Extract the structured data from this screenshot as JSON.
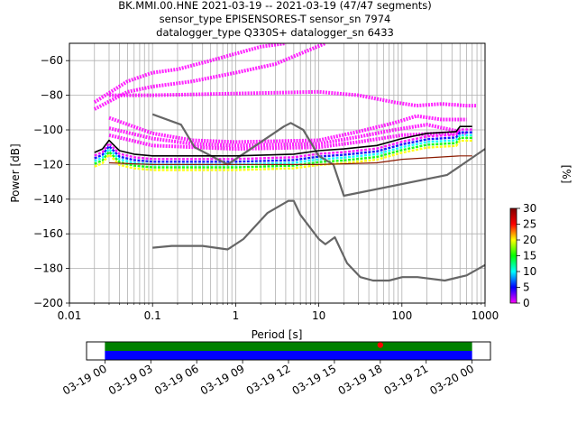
{
  "chart_data": {
    "type": "heatmap",
    "title_lines": [
      "BK.MMI.00.HNE   2021-03-19 -- 2021-03-19  (47/47 segments)",
      "sensor_type EPISENSORES-T sensor_sn 7974",
      "datalogger_type Q330S+ datalogger_sn 6433"
    ],
    "xlabel": "Period [s]",
    "ylabel": "Power [dB]",
    "x_scale": "log",
    "xlim": [
      0.01,
      1000
    ],
    "ylim": [
      -200,
      -50
    ],
    "x_ticks": [
      {
        "value": 0.01,
        "label": "0.01"
      },
      {
        "value": 0.1,
        "label": "0.1"
      },
      {
        "value": 1,
        "label": "1"
      },
      {
        "value": 10,
        "label": "10"
      },
      {
        "value": 100,
        "label": "100"
      },
      {
        "value": 1000,
        "label": "1000"
      }
    ],
    "y_ticks": [
      {
        "value": -60,
        "label": "−60"
      },
      {
        "value": -80,
        "label": "−80"
      },
      {
        "value": -100,
        "label": "−100"
      },
      {
        "value": -120,
        "label": "−120"
      },
      {
        "value": -140,
        "label": "−140"
      },
      {
        "value": -160,
        "label": "−160"
      },
      {
        "value": -180,
        "label": "−180"
      },
      {
        "value": -200,
        "label": "−200"
      }
    ],
    "grid": true,
    "colorbar": {
      "label": "[%]",
      "range": [
        0,
        30
      ],
      "ticks": [
        {
          "value": 0,
          "label": "0"
        },
        {
          "value": 5,
          "label": "5"
        },
        {
          "value": 10,
          "label": "10"
        },
        {
          "value": 15,
          "label": "15"
        },
        {
          "value": 20,
          "label": "20"
        },
        {
          "value": 25,
          "label": "25"
        },
        {
          "value": 30,
          "label": "30"
        }
      ],
      "colors": [
        "#ff00ff",
        "#0000ff",
        "#00ffff",
        "#00ff00",
        "#ffff00",
        "#ff0000",
        "#800000"
      ]
    },
    "series": [
      {
        "kind": "model-high",
        "color": "#666666",
        "points": [
          [
            0.1,
            -91
          ],
          [
            0.22,
            -97
          ],
          [
            0.32,
            -110
          ],
          [
            0.8,
            -120
          ],
          [
            3.8,
            -98
          ],
          [
            4.6,
            -96
          ],
          [
            6.5,
            -100
          ],
          [
            10,
            -115
          ],
          [
            15,
            -120
          ],
          [
            20,
            -138
          ],
          [
            350,
            -126
          ],
          [
            1000,
            -111
          ]
        ]
      },
      {
        "kind": "model-low",
        "color": "#666666",
        "points": [
          [
            0.1,
            -168
          ],
          [
            0.17,
            -167
          ],
          [
            0.4,
            -167
          ],
          [
            0.8,
            -169
          ],
          [
            1.24,
            -163
          ],
          [
            2.4,
            -148
          ],
          [
            4.3,
            -141
          ],
          [
            5,
            -141
          ],
          [
            6,
            -149
          ],
          [
            10,
            -163
          ],
          [
            12,
            -166
          ],
          [
            15.6,
            -162
          ],
          [
            21.9,
            -177
          ],
          [
            31.6,
            -185
          ],
          [
            45,
            -187
          ],
          [
            70,
            -187
          ],
          [
            101,
            -185
          ],
          [
            154,
            -185
          ],
          [
            328,
            -187
          ],
          [
            600,
            -184
          ],
          [
            1000,
            -178
          ]
        ]
      },
      {
        "kind": "mean",
        "color": "#000000",
        "points": [
          [
            0.02,
            -113
          ],
          [
            0.025,
            -111
          ],
          [
            0.03,
            -106
          ],
          [
            0.033,
            -108
          ],
          [
            0.04,
            -112
          ],
          [
            0.06,
            -114
          ],
          [
            0.1,
            -115
          ],
          [
            1,
            -115
          ],
          [
            5,
            -114
          ],
          [
            10,
            -112
          ],
          [
            20,
            -111
          ],
          [
            50,
            -109
          ],
          [
            100,
            -105
          ],
          [
            200,
            -102
          ],
          [
            450,
            -101
          ],
          [
            500,
            -98
          ],
          [
            700,
            -98
          ]
        ]
      },
      {
        "kind": "noise-floor",
        "color": "#8b1a00",
        "points": [
          [
            0.03,
            -119
          ],
          [
            0.1,
            -120
          ],
          [
            1,
            -120
          ],
          [
            10,
            -120
          ],
          [
            50,
            -119
          ],
          [
            100,
            -117
          ],
          [
            500,
            -115
          ],
          [
            700,
            -115
          ]
        ]
      }
    ],
    "upper_bands": [
      {
        "color": "#ff00ff",
        "points": [
          [
            0.02,
            -84
          ],
          [
            0.05,
            -72
          ],
          [
            0.1,
            -67
          ],
          [
            0.2,
            -65
          ],
          [
            0.5,
            -60
          ],
          [
            1,
            -56
          ],
          [
            2,
            -52
          ],
          [
            4,
            -50
          ]
        ]
      },
      {
        "color": "#ff00ff",
        "points": [
          [
            0.02,
            -88
          ],
          [
            0.05,
            -78
          ],
          [
            0.1,
            -75
          ],
          [
            0.3,
            -72
          ],
          [
            1,
            -67
          ],
          [
            3,
            -62
          ],
          [
            6,
            -56
          ],
          [
            12,
            -50
          ]
        ]
      },
      {
        "color": "#ff00ff",
        "points": [
          [
            0.03,
            -80
          ],
          [
            0.1,
            -80
          ],
          [
            1,
            -79
          ],
          [
            10,
            -78
          ],
          [
            30,
            -80
          ],
          [
            80,
            -84
          ],
          [
            150,
            -86
          ],
          [
            300,
            -85
          ],
          [
            600,
            -86
          ],
          [
            800,
            -86
          ]
        ]
      },
      {
        "color": "#ff00ff",
        "points": [
          [
            0.03,
            -93
          ],
          [
            0.1,
            -102
          ],
          [
            0.3,
            -106
          ],
          [
            1,
            -107
          ],
          [
            10,
            -106
          ],
          [
            30,
            -101
          ],
          [
            80,
            -96
          ],
          [
            150,
            -92
          ],
          [
            300,
            -94
          ],
          [
            600,
            -94
          ]
        ]
      },
      {
        "color": "#ff00ff",
        "points": [
          [
            0.03,
            -99
          ],
          [
            0.1,
            -105
          ],
          [
            0.3,
            -108
          ],
          [
            1,
            -109
          ],
          [
            10,
            -108
          ],
          [
            30,
            -104
          ],
          [
            80,
            -100
          ],
          [
            200,
            -97
          ],
          [
            500,
            -101
          ]
        ]
      },
      {
        "color": "#ff00ff",
        "points": [
          [
            0.03,
            -103
          ],
          [
            0.1,
            -109
          ],
          [
            1,
            -111
          ],
          [
            10,
            -110
          ],
          [
            30,
            -107
          ],
          [
            100,
            -103
          ],
          [
            300,
            -102
          ],
          [
            600,
            -102
          ]
        ]
      }
    ],
    "data_availability": {
      "time_ticks": [
        {
          "value": 0,
          "label": "03-19 00"
        },
        {
          "value": 3,
          "label": "03-19 03"
        },
        {
          "value": 6,
          "label": "03-19 06"
        },
        {
          "value": 9,
          "label": "03-19 09"
        },
        {
          "value": 12,
          "label": "03-19 12"
        },
        {
          "value": 15,
          "label": "03-19 15"
        },
        {
          "value": 18,
          "label": "03-19 18"
        },
        {
          "value": 21,
          "label": "03-19 21"
        },
        {
          "value": 24,
          "label": "03-20 00"
        }
      ],
      "range_hours": [
        -1.2,
        25.2
      ],
      "coverage_hours": [
        0,
        24
      ],
      "gap_marker_hour": 18.0,
      "colors": {
        "top": "#008000",
        "bottom": "#0000ff",
        "marker": "#ff0000"
      }
    }
  }
}
